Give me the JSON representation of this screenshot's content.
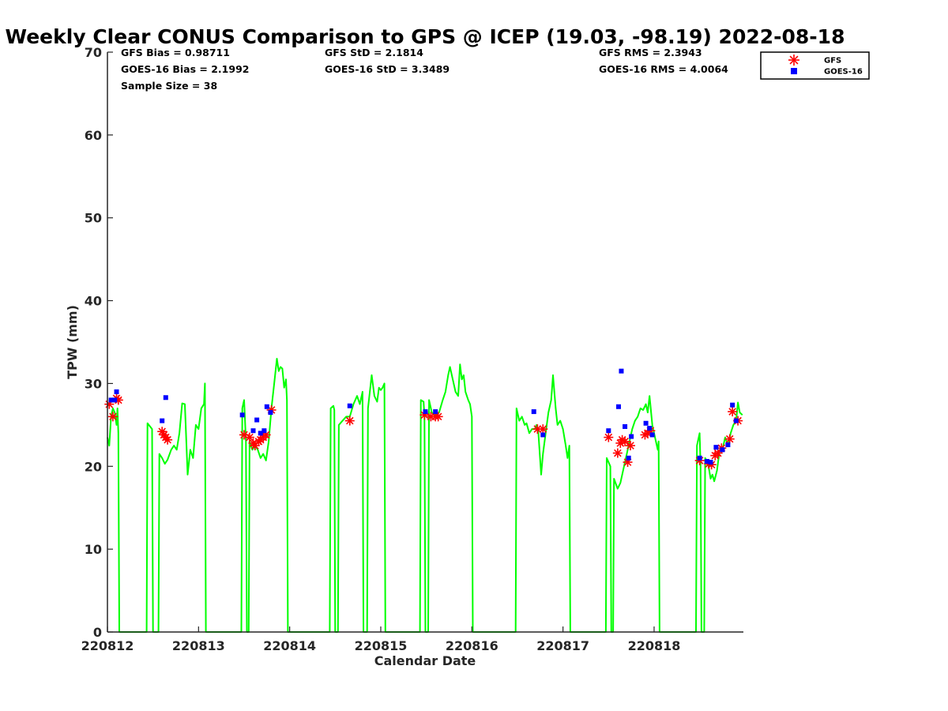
{
  "chart_data": {
    "type": "scatter",
    "title": "Weekly Clear CONUS Comparison to GPS @ ICEP (19.03, -98.19) 2022-08-18",
    "xlabel": "Calendar Date",
    "ylabel": "TPW (mm)",
    "xlim": [
      0,
      6.98
    ],
    "ylim": [
      0,
      70
    ],
    "x_unit": "days since 220812",
    "x_ticks": [
      {
        "x": 0,
        "label": "220812"
      },
      {
        "x": 1,
        "label": "220813"
      },
      {
        "x": 2,
        "label": "220814"
      },
      {
        "x": 3,
        "label": "220815"
      },
      {
        "x": 4,
        "label": "220816"
      },
      {
        "x": 5,
        "label": "220817"
      },
      {
        "x": 6,
        "label": "220818"
      }
    ],
    "y_ticks": [
      0,
      10,
      20,
      30,
      40,
      50,
      60,
      70
    ],
    "grid": false,
    "legend_position": "top-right",
    "stats": [
      {
        "label": "GFS Bias = 0.98711",
        "col": 0,
        "row": 0
      },
      {
        "label": "GOES-16 Bias = 2.1992",
        "col": 0,
        "row": 1
      },
      {
        "label": "Sample Size = 38",
        "col": 0,
        "row": 2
      },
      {
        "label": "GFS StD = 2.1814",
        "col": 1,
        "row": 0
      },
      {
        "label": "GOES-16 StD = 3.3489",
        "col": 1,
        "row": 1
      },
      {
        "label": "GFS RMS = 2.3943",
        "col": 2,
        "row": 0
      },
      {
        "label": "GOES-16 RMS = 4.0064",
        "col": 2,
        "row": 1
      }
    ],
    "series": [
      {
        "name": "GPS",
        "kind": "line",
        "color": "#00ff00",
        "show_in_legend": false,
        "points": [
          [
            0.0,
            23.5
          ],
          [
            0.02,
            22.5
          ],
          [
            0.04,
            26
          ],
          [
            0.06,
            27
          ],
          [
            0.08,
            26.5
          ],
          [
            0.1,
            25
          ],
          [
            0.11,
            27
          ],
          [
            0.12,
            24
          ],
          [
            0.13,
            0
          ],
          [
            0.43,
            0
          ],
          [
            0.44,
            25.2
          ],
          [
            0.49,
            24.5
          ],
          [
            0.5,
            0
          ],
          [
            0.56,
            0
          ],
          [
            0.57,
            21.5
          ],
          [
            0.6,
            21
          ],
          [
            0.63,
            20.3
          ],
          [
            0.66,
            20.8
          ],
          [
            0.7,
            22
          ],
          [
            0.73,
            22.5
          ],
          [
            0.76,
            22
          ],
          [
            0.79,
            24
          ],
          [
            0.82,
            27.6
          ],
          [
            0.85,
            27.5
          ],
          [
            0.88,
            19
          ],
          [
            0.91,
            22
          ],
          [
            0.94,
            21
          ],
          [
            0.97,
            25
          ],
          [
            1.0,
            24.5
          ],
          [
            1.03,
            27
          ],
          [
            1.06,
            27.5
          ],
          [
            1.07,
            30
          ],
          [
            1.08,
            0
          ],
          [
            1.47,
            0
          ],
          [
            1.48,
            27
          ],
          [
            1.5,
            28
          ],
          [
            1.52,
            23
          ],
          [
            1.53,
            0
          ],
          [
            1.55,
            0
          ],
          [
            1.56,
            23
          ],
          [
            1.59,
            22
          ],
          [
            1.62,
            22.5
          ],
          [
            1.65,
            22
          ],
          [
            1.68,
            21
          ],
          [
            1.71,
            21.5
          ],
          [
            1.74,
            20.7
          ],
          [
            1.77,
            23
          ],
          [
            1.8,
            27
          ],
          [
            1.83,
            30
          ],
          [
            1.86,
            33
          ],
          [
            1.88,
            31.5
          ],
          [
            1.9,
            32
          ],
          [
            1.92,
            31.8
          ],
          [
            1.94,
            29.5
          ],
          [
            1.96,
            30.5
          ],
          [
            1.97,
            28
          ],
          [
            1.98,
            0
          ],
          [
            2.44,
            0
          ],
          [
            2.45,
            27
          ],
          [
            2.48,
            27.3
          ],
          [
            2.49,
            26.8
          ],
          [
            2.5,
            0
          ],
          [
            2.53,
            0
          ],
          [
            2.54,
            25
          ],
          [
            2.58,
            25.5
          ],
          [
            2.62,
            26
          ],
          [
            2.66,
            26
          ],
          [
            2.7,
            27.5
          ],
          [
            2.74,
            28.5
          ],
          [
            2.77,
            27.5
          ],
          [
            2.8,
            29
          ],
          [
            2.81,
            0
          ],
          [
            2.85,
            0
          ],
          [
            2.86,
            27
          ],
          [
            2.9,
            31
          ],
          [
            2.93,
            28.5
          ],
          [
            2.96,
            27.8
          ],
          [
            2.98,
            29.5
          ],
          [
            3.0,
            29.2
          ],
          [
            3.02,
            29.5
          ],
          [
            3.04,
            30
          ],
          [
            3.05,
            0
          ],
          [
            3.43,
            0
          ],
          [
            3.44,
            28
          ],
          [
            3.47,
            27.8
          ],
          [
            3.48,
            26
          ],
          [
            3.49,
            0
          ],
          [
            3.52,
            0
          ],
          [
            3.53,
            28
          ],
          [
            3.56,
            26.5
          ],
          [
            3.6,
            26.2
          ],
          [
            3.64,
            26.5
          ],
          [
            3.68,
            28
          ],
          [
            3.71,
            29
          ],
          [
            3.74,
            31
          ],
          [
            3.76,
            32
          ],
          [
            3.79,
            30.5
          ],
          [
            3.82,
            29
          ],
          [
            3.85,
            28.5
          ],
          [
            3.87,
            32.3
          ],
          [
            3.89,
            30.5
          ],
          [
            3.91,
            31
          ],
          [
            3.93,
            29
          ],
          [
            3.96,
            28
          ],
          [
            3.98,
            27.5
          ],
          [
            4.0,
            26
          ],
          [
            4.01,
            0
          ],
          [
            4.48,
            0
          ],
          [
            4.49,
            27
          ],
          [
            4.52,
            25.5
          ],
          [
            4.55,
            26
          ],
          [
            4.58,
            25
          ],
          [
            4.6,
            25.2
          ],
          [
            4.63,
            24
          ],
          [
            4.66,
            24.5
          ],
          [
            4.69,
            24.5
          ],
          [
            4.71,
            25
          ],
          [
            4.73,
            24
          ],
          [
            4.76,
            19
          ],
          [
            4.78,
            21.5
          ],
          [
            4.81,
            24
          ],
          [
            4.84,
            26.5
          ],
          [
            4.87,
            28
          ],
          [
            4.89,
            31
          ],
          [
            4.92,
            27
          ],
          [
            4.94,
            25
          ],
          [
            4.97,
            25.5
          ],
          [
            5.0,
            24.5
          ],
          [
            5.03,
            22.5
          ],
          [
            5.05,
            21
          ],
          [
            5.07,
            22.5
          ],
          [
            5.08,
            0
          ],
          [
            5.47,
            0
          ],
          [
            5.48,
            21
          ],
          [
            5.52,
            20
          ],
          [
            5.53,
            0
          ],
          [
            5.55,
            0
          ],
          [
            5.56,
            18.5
          ],
          [
            5.6,
            17.3
          ],
          [
            5.63,
            18
          ],
          [
            5.67,
            20
          ],
          [
            5.7,
            21.5
          ],
          [
            5.73,
            23
          ],
          [
            5.76,
            24.5
          ],
          [
            5.79,
            25.5
          ],
          [
            5.82,
            26
          ],
          [
            5.85,
            27
          ],
          [
            5.88,
            26.8
          ],
          [
            5.91,
            27.5
          ],
          [
            5.93,
            26.5
          ],
          [
            5.95,
            28.5
          ],
          [
            5.98,
            25
          ],
          [
            6.01,
            23.5
          ],
          [
            6.04,
            22
          ],
          [
            6.05,
            23
          ],
          [
            6.06,
            0
          ],
          [
            6.46,
            0
          ],
          [
            6.47,
            22.5
          ],
          [
            6.5,
            24
          ],
          [
            6.51,
            20
          ],
          [
            6.52,
            0
          ],
          [
            6.55,
            0
          ],
          [
            6.56,
            21
          ],
          [
            6.59,
            20.5
          ],
          [
            6.62,
            18.5
          ],
          [
            6.64,
            19
          ],
          [
            6.66,
            18.2
          ],
          [
            6.69,
            19.5
          ],
          [
            6.72,
            22
          ],
          [
            6.75,
            22
          ],
          [
            6.78,
            23.5
          ],
          [
            6.81,
            22.5
          ],
          [
            6.84,
            24
          ],
          [
            6.87,
            25
          ],
          [
            6.9,
            25.5
          ],
          [
            6.92,
            27.7
          ],
          [
            6.94,
            26.5
          ],
          [
            6.97,
            26.2
          ]
        ]
      },
      {
        "name": "GFS",
        "kind": "marker",
        "marker": "asterisk",
        "color": "#ff0000",
        "show_in_legend": true,
        "points": [
          [
            0.02,
            27.5
          ],
          [
            0.06,
            26
          ],
          [
            0.1,
            28.2
          ],
          [
            0.12,
            28
          ],
          [
            0.6,
            24.2
          ],
          [
            0.62,
            23.8
          ],
          [
            0.64,
            23.5
          ],
          [
            0.66,
            23.2
          ],
          [
            1.5,
            23.8
          ],
          [
            1.56,
            23.5
          ],
          [
            1.6,
            22.8
          ],
          [
            1.62,
            22.5
          ],
          [
            1.66,
            23
          ],
          [
            1.68,
            23.2
          ],
          [
            1.71,
            23.5
          ],
          [
            1.74,
            23.8
          ],
          [
            1.8,
            26.8
          ],
          [
            2.66,
            25.5
          ],
          [
            3.48,
            26.2
          ],
          [
            3.55,
            26
          ],
          [
            3.6,
            26
          ],
          [
            3.63,
            26
          ],
          [
            4.72,
            24.5
          ],
          [
            4.78,
            24.5
          ],
          [
            5.5,
            23.5
          ],
          [
            5.6,
            21.6
          ],
          [
            5.63,
            22.8
          ],
          [
            5.65,
            23.2
          ],
          [
            5.68,
            23
          ],
          [
            5.71,
            20.5
          ],
          [
            5.74,
            22.5
          ],
          [
            5.9,
            23.8
          ],
          [
            5.93,
            24
          ],
          [
            5.96,
            24.3
          ],
          [
            6.5,
            20.7
          ],
          [
            6.6,
            20.3
          ],
          [
            6.63,
            20.2
          ],
          [
            6.67,
            21.3
          ],
          [
            6.7,
            21.6
          ],
          [
            6.74,
            22.2
          ],
          [
            6.83,
            23.3
          ],
          [
            6.86,
            26.6
          ],
          [
            6.92,
            25.5
          ]
        ]
      },
      {
        "name": "GOES-16",
        "kind": "marker",
        "marker": "square",
        "color": "#0000ff",
        "show_in_legend": true,
        "points": [
          [
            0.04,
            28
          ],
          [
            0.08,
            28
          ],
          [
            0.1,
            29
          ],
          [
            0.6,
            25.5
          ],
          [
            0.64,
            28.3
          ],
          [
            1.48,
            26.2
          ],
          [
            1.6,
            24.3
          ],
          [
            1.64,
            25.6
          ],
          [
            1.68,
            24
          ],
          [
            1.72,
            24.3
          ],
          [
            1.75,
            27.2
          ],
          [
            1.79,
            26.5
          ],
          [
            2.66,
            27.3
          ],
          [
            3.49,
            26.6
          ],
          [
            3.6,
            26.6
          ],
          [
            4.68,
            26.6
          ],
          [
            4.78,
            23.8
          ],
          [
            5.5,
            24.3
          ],
          [
            5.61,
            27.2
          ],
          [
            5.64,
            31.5
          ],
          [
            5.68,
            24.8
          ],
          [
            5.72,
            21
          ],
          [
            5.75,
            23.6
          ],
          [
            5.91,
            25.2
          ],
          [
            5.95,
            24.6
          ],
          [
            5.98,
            23.8
          ],
          [
            6.5,
            21
          ],
          [
            6.58,
            20.6
          ],
          [
            6.62,
            20.5
          ],
          [
            6.68,
            22.3
          ],
          [
            6.75,
            22
          ],
          [
            6.81,
            22.6
          ],
          [
            6.86,
            27.4
          ],
          [
            6.9,
            25.5
          ]
        ]
      }
    ]
  }
}
